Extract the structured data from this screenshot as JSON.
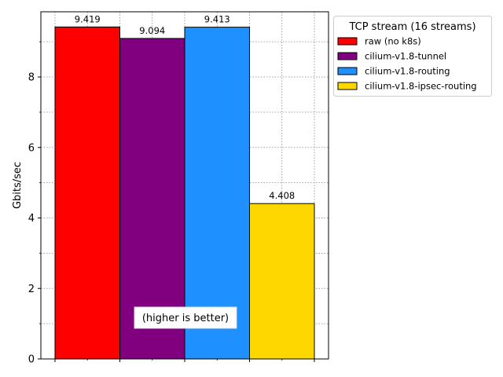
{
  "chart_data": {
    "type": "bar",
    "title": "",
    "xlabel": "",
    "ylabel": "Gbits/sec",
    "ylim": [
      0,
      9.85
    ],
    "yticks": [
      0,
      2,
      4,
      6,
      8
    ],
    "ytick_labels": [
      "0",
      "2",
      "4",
      "6",
      "8"
    ],
    "grid": true,
    "legend": {
      "title": "TCP stream (16 streams)",
      "placement": "outside-top-right"
    },
    "series": [
      {
        "name": "raw (no k8s)",
        "value": 9.419,
        "label": "9.419",
        "color": "#ff0000"
      },
      {
        "name": "cilium-v1.8-tunnel",
        "value": 9.094,
        "label": "9.094",
        "color": "#800080"
      },
      {
        "name": "cilium-v1.8-routing",
        "value": 9.413,
        "label": "9.413",
        "color": "#1e90ff"
      },
      {
        "name": "cilium-v1.8-ipsec-routing",
        "value": 4.408,
        "label": "4.408",
        "color": "#ffd700"
      }
    ],
    "annotation": "(higher is better)"
  }
}
